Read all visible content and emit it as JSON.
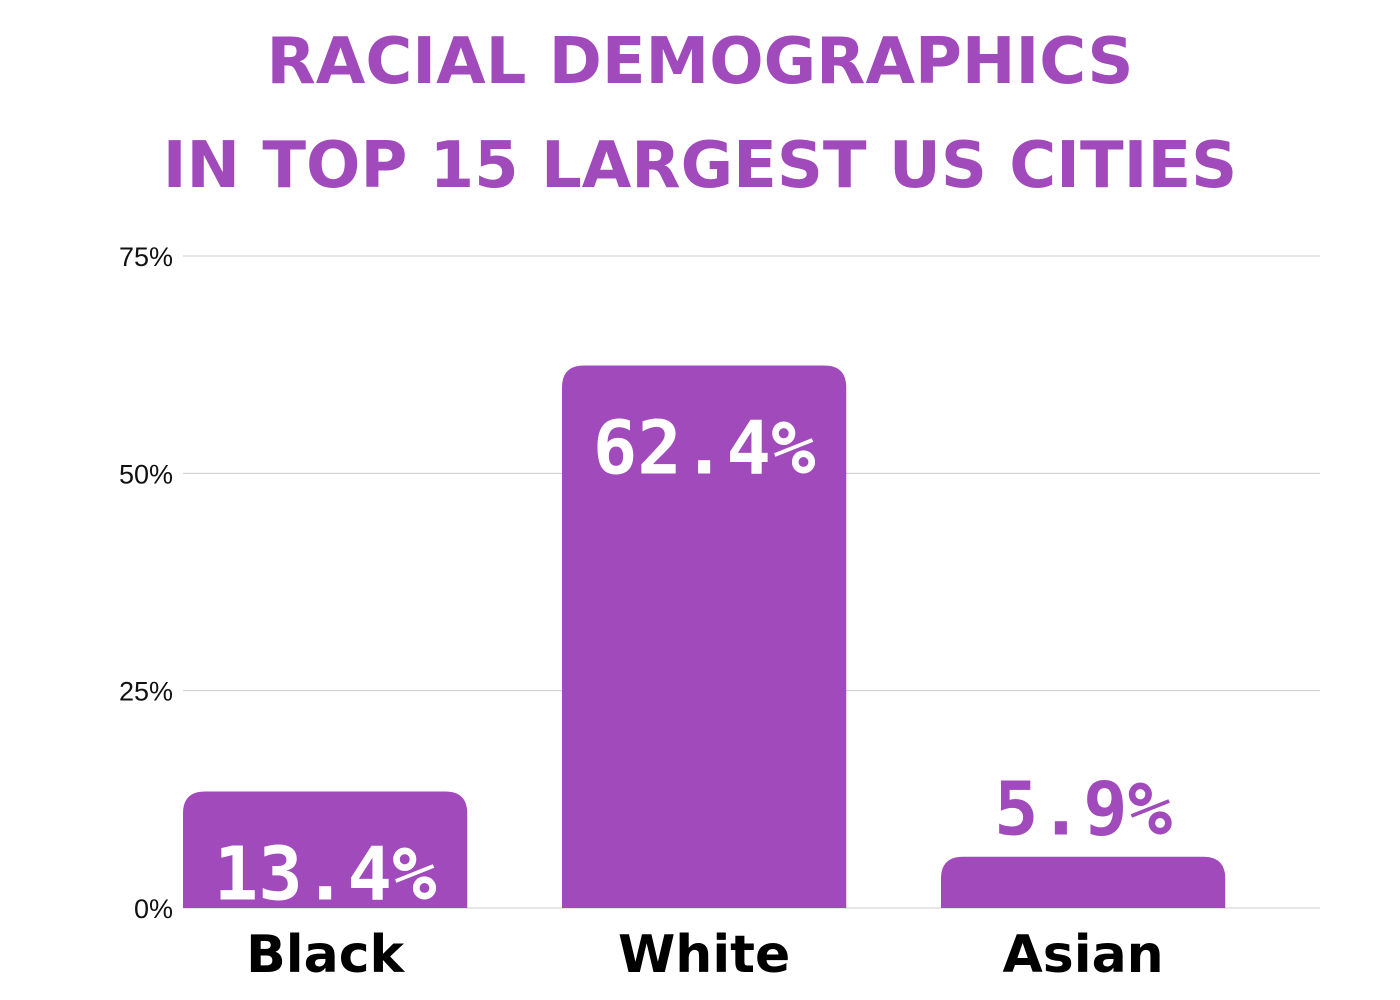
{
  "chart_data": {
    "type": "bar",
    "title_lines": [
      "RACIAL DEMOGRAPHICS",
      "IN TOP 15 LARGEST US CITIES"
    ],
    "categories": [
      "Black",
      "White",
      "Asian"
    ],
    "values": [
      13.4,
      62.4,
      5.9
    ],
    "value_labels": [
      "13.4%",
      "62.4%",
      "5.9%"
    ],
    "yticks": [
      "0%",
      "25%",
      "50%",
      "75%"
    ],
    "ylim": [
      0,
      75
    ],
    "grid": true,
    "legend": "none",
    "colors": {
      "bar": "#a04abb",
      "title": "#a04abb",
      "label_inside": "#ffffff",
      "label_outside": "#a04abb",
      "grid": "#cccccc"
    }
  }
}
